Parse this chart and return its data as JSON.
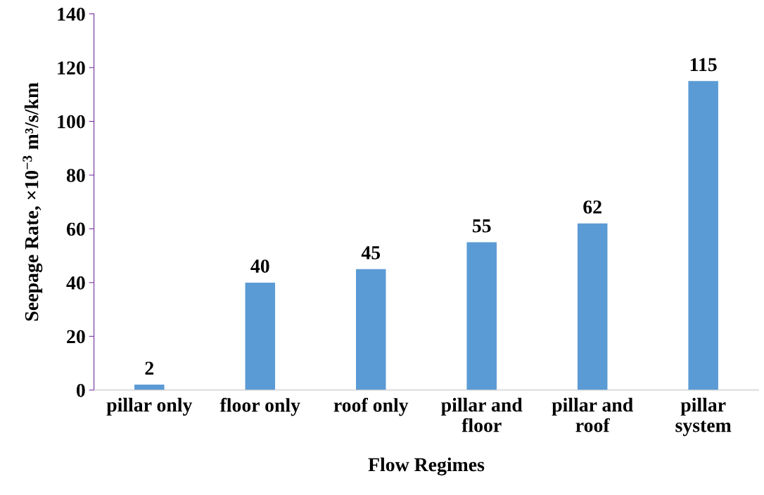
{
  "chart_data": {
    "type": "bar",
    "xlabel": "Flow Regimes",
    "ylabel": "Seepage Rate, ×10$^{−3}$ m³/s/km",
    "categories": [
      "pillar only",
      "floor only",
      "roof only",
      "pillar and\nfloor",
      "pillar and\nroof",
      "pillar\nsystem"
    ],
    "values": [
      2,
      40,
      45,
      55,
      62,
      115
    ],
    "color": "#5b9bd5",
    "ylim": [
      0,
      140
    ],
    "yticks": [
      0,
      20,
      40,
      60,
      80,
      100,
      120,
      140
    ],
    "data_labels": true,
    "grid": false,
    "legend": false
  }
}
